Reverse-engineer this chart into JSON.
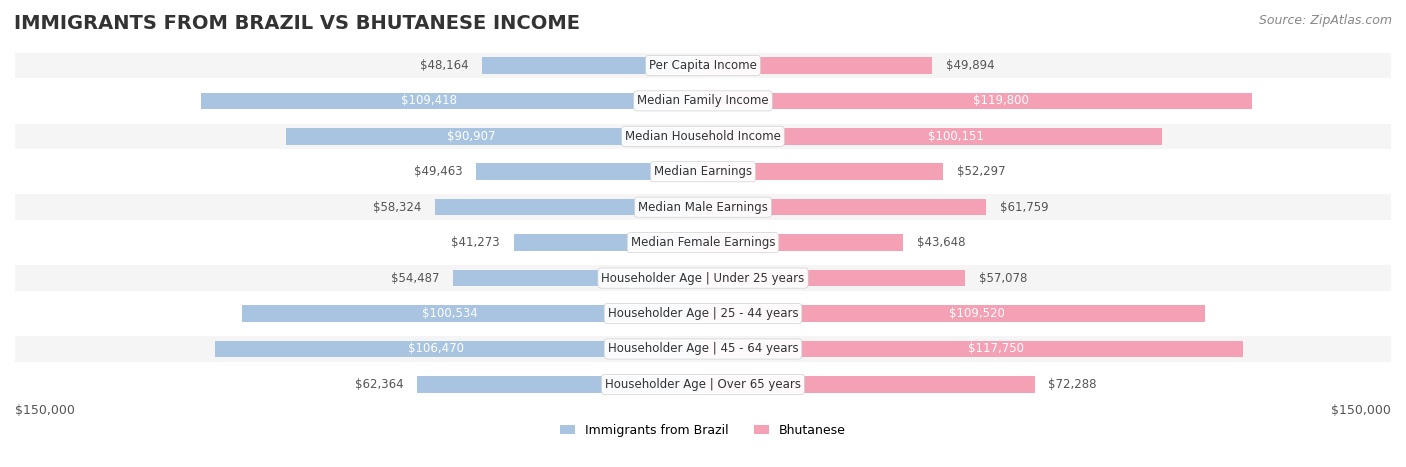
{
  "title": "IMMIGRANTS FROM BRAZIL VS BHUTANESE INCOME",
  "source": "Source: ZipAtlas.com",
  "categories": [
    "Per Capita Income",
    "Median Family Income",
    "Median Household Income",
    "Median Earnings",
    "Median Male Earnings",
    "Median Female Earnings",
    "Householder Age | Under 25 years",
    "Householder Age | 25 - 44 years",
    "Householder Age | 45 - 64 years",
    "Householder Age | Over 65 years"
  ],
  "brazil_values": [
    48164,
    109418,
    90907,
    49463,
    58324,
    41273,
    54487,
    100534,
    106470,
    62364
  ],
  "bhutan_values": [
    49894,
    119800,
    100151,
    52297,
    61759,
    43648,
    57078,
    109520,
    117750,
    72288
  ],
  "brazil_labels": [
    "$48,164",
    "$109,418",
    "$90,907",
    "$49,463",
    "$58,324",
    "$41,273",
    "$54,487",
    "$100,534",
    "$106,470",
    "$62,364"
  ],
  "bhutan_labels": [
    "$49,894",
    "$119,800",
    "$100,151",
    "$52,297",
    "$61,759",
    "$43,648",
    "$57,078",
    "$109,520",
    "$117,750",
    "$72,288"
  ],
  "brazil_color": "#a8c4e0",
  "bhutan_color": "#f4a0b5",
  "brazil_label_color_inside": "#ffffff",
  "brazil_label_color_outside": "#555555",
  "bhutan_label_color_inside": "#ffffff",
  "bhutan_label_color_outside": "#555555",
  "brazil_inside_threshold": 80000,
  "bhutan_inside_threshold": 80000,
  "max_value": 150000,
  "axis_label_left": "$150,000",
  "axis_label_right": "$150,000",
  "legend_brazil": "Immigrants from Brazil",
  "legend_bhutan": "Bhutanese",
  "background_color": "#ffffff",
  "row_bg_color": "#f5f5f5",
  "row_alt_bg_color": "#ffffff",
  "title_fontsize": 14,
  "source_fontsize": 9,
  "label_fontsize": 8.5,
  "category_fontsize": 8.5
}
